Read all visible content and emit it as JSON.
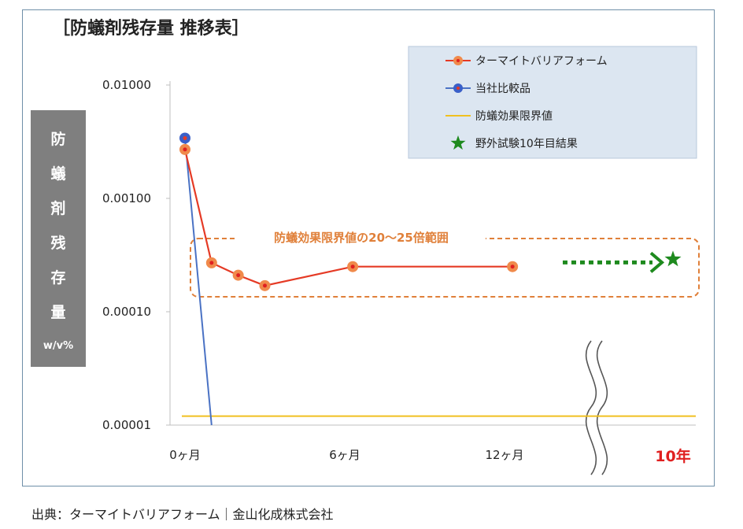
{
  "title": "［防蟻剤残存量 推移表］",
  "source": "出典：ターマイトバリアフォーム｜金山化成株式会社",
  "colors": {
    "termite": "#e53a25",
    "termite_marker": "#f08a4b",
    "competitor": "#4a72c4",
    "competitor_marker": "#3a5fc8",
    "limit": "#f0c020",
    "field": "#1e8a1e",
    "range": "#e0803a",
    "ylabel_bg": "#7f7f7f",
    "legend_bg": "#dce6f1"
  },
  "chart_data": {
    "type": "line",
    "y_scale": "log",
    "ylim": [
      1e-05,
      0.01
    ],
    "y_ticks": [
      0.01,
      0.001,
      0.0001,
      1e-05
    ],
    "y_tick_labels": [
      "0.01000",
      "0.00100",
      "0.00010",
      "0.00001"
    ],
    "ylabel": [
      "防",
      "蟻",
      "剤",
      "残",
      "存",
      "量"
    ],
    "ylabel_unit": "w/v%",
    "x_unit": "months",
    "x_ticks": [
      0,
      6,
      12
    ],
    "x_tick_labels": [
      "0ヶ月",
      "6ヶ月",
      "12ヶ月"
    ],
    "x_break_label": "10年",
    "series": [
      {
        "name": "ターマイトバリアフォーム",
        "x": [
          0,
          1,
          2,
          3,
          6.3,
          12.3
        ],
        "y": [
          0.0027,
          0.00027,
          0.00021,
          0.00017,
          0.00025,
          0.00025
        ]
      },
      {
        "name": "当社比較品",
        "x": [
          0,
          1
        ],
        "y": [
          0.0034,
          1e-05
        ]
      },
      {
        "name": "防蟻効果限界値",
        "y_const": 1.2e-05
      },
      {
        "name": "野外試験10年目結果",
        "x_label": "10年",
        "y": 0.00029
      }
    ],
    "annotation": "防蟻効果限界値の20～25倍範囲",
    "legend_position": "top-right"
  }
}
